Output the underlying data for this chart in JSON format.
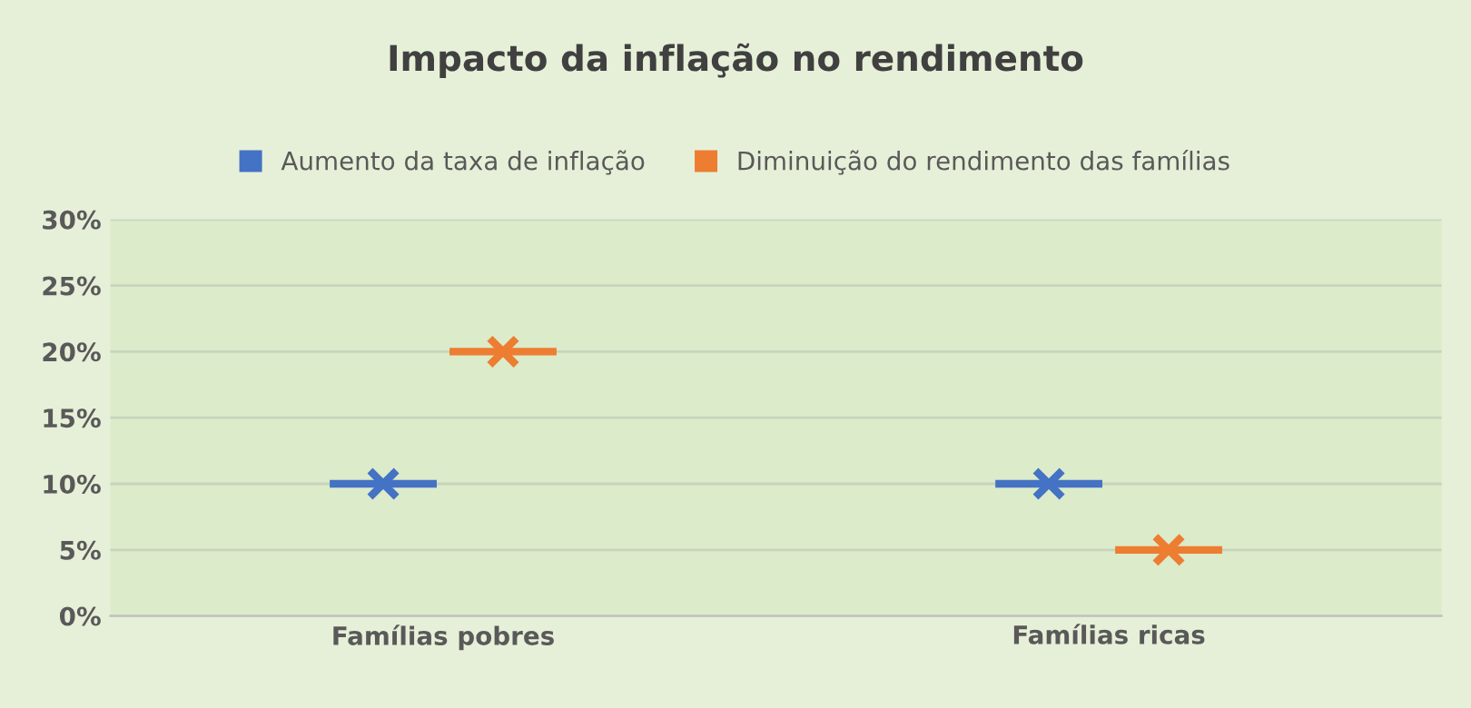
{
  "chart_data": {
    "type": "scatter",
    "title": "Impacto da inflação no rendimento",
    "categories": [
      "Famílias pobres",
      "Famílias ricas"
    ],
    "series": [
      {
        "name": "Aumento da taxa de inflação",
        "color": "#4472c4",
        "values": [
          10,
          10
        ]
      },
      {
        "name": "Diminuição do rendimento das famílias",
        "color": "#ed7d31",
        "values": [
          20,
          5
        ]
      }
    ],
    "ylim": [
      0,
      30
    ],
    "yticks": [
      {
        "value": 0,
        "label": "0%"
      },
      {
        "value": 5,
        "label": "5%"
      },
      {
        "value": 10,
        "label": "10%"
      },
      {
        "value": 15,
        "label": "15%"
      },
      {
        "value": 20,
        "label": "20%"
      },
      {
        "value": 25,
        "label": "25%"
      },
      {
        "value": 30,
        "label": "30%"
      }
    ],
    "grid": "y",
    "legend": "top",
    "marker": "cross"
  }
}
